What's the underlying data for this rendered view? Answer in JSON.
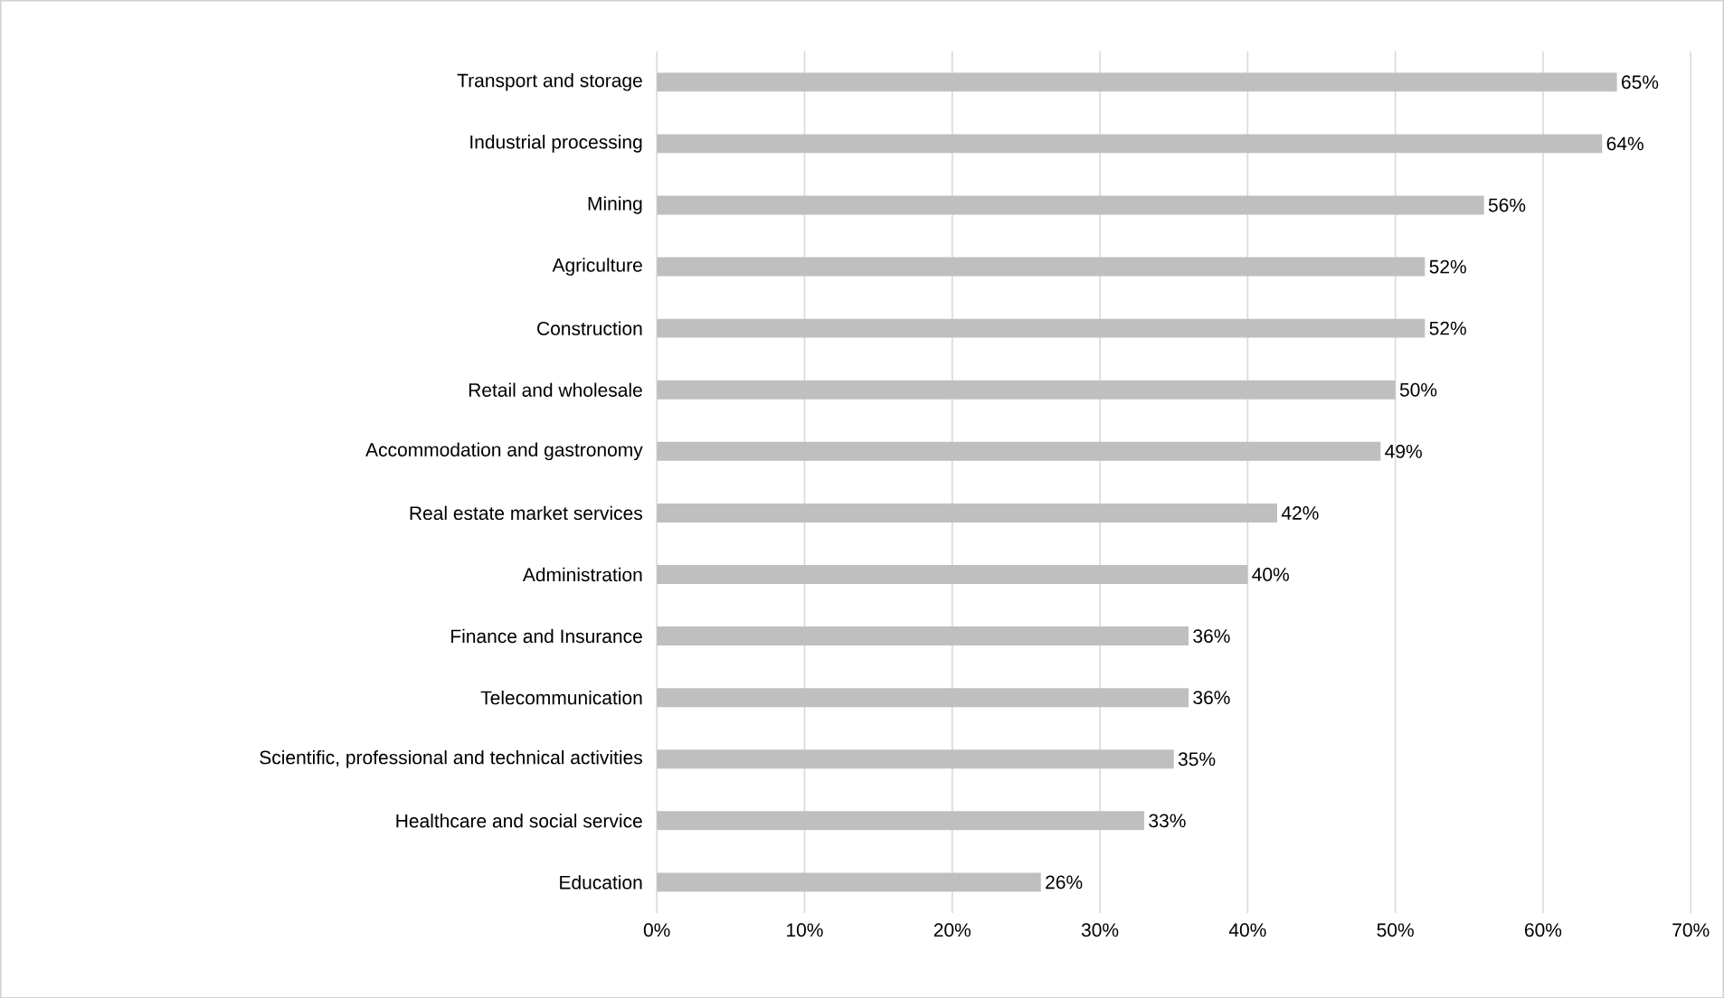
{
  "chart_data": {
    "type": "bar",
    "orientation": "horizontal",
    "categories": [
      "Transport and storage",
      "Industrial processing",
      "Mining",
      "Agriculture",
      "Construction",
      "Retail and wholesale",
      "Accommodation and gastronomy",
      "Real estate market services",
      "Administration",
      "Finance and Insurance",
      "Telecommunication",
      "Scientific, professional and technical activities",
      "Healthcare and social service",
      "Education"
    ],
    "values": [
      65,
      64,
      56,
      52,
      52,
      50,
      49,
      42,
      40,
      36,
      36,
      35,
      33,
      26
    ],
    "value_labels": [
      "65%",
      "64%",
      "56%",
      "52%",
      "52%",
      "50%",
      "49%",
      "42%",
      "40%",
      "36%",
      "36%",
      "35%",
      "33%",
      "26%"
    ],
    "color": "#bfbfbf",
    "xlim": [
      0,
      70
    ],
    "xticks": [
      {
        "value": 0,
        "label": "0%"
      },
      {
        "value": 10,
        "label": "10%"
      },
      {
        "value": 20,
        "label": "20%"
      },
      {
        "value": 30,
        "label": "30%"
      },
      {
        "value": 40,
        "label": "40%"
      },
      {
        "value": 50,
        "label": "50%"
      },
      {
        "value": 60,
        "label": "60%"
      },
      {
        "value": 70,
        "label": "70%"
      }
    ],
    "grid": "x"
  }
}
